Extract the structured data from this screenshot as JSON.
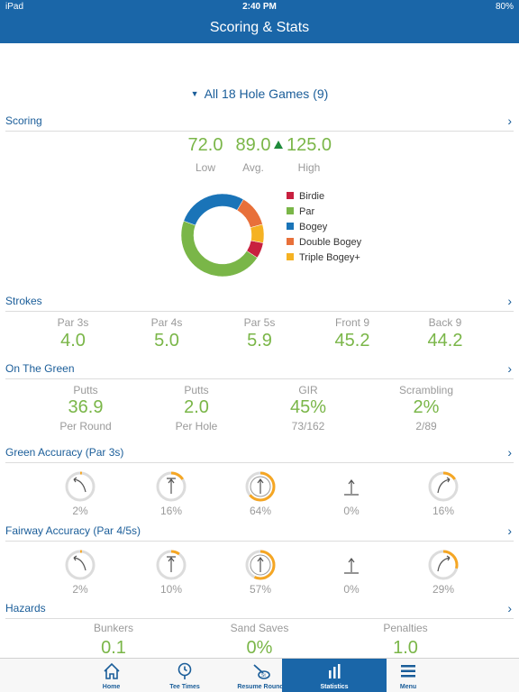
{
  "status": {
    "device": "iPad",
    "time": "2:40 PM",
    "battery": "80%"
  },
  "header": {
    "title": "Scoring & Stats"
  },
  "filter": {
    "label": "All 18 Hole Games (9)"
  },
  "scoring": {
    "heading": "Scoring",
    "low": "72.0",
    "low_label": "Low",
    "avg": "89.0",
    "avg_label": "Avg.",
    "high": "125.0",
    "high_label": "High",
    "legend": [
      {
        "label": "Birdie",
        "color": "#c8203f"
      },
      {
        "label": "Par",
        "color": "#7ab648"
      },
      {
        "label": "Bogey",
        "color": "#1a74b8"
      },
      {
        "label": "Double Bogey",
        "color": "#e8703a"
      },
      {
        "label": "Triple Bogey+",
        "color": "#f5b223"
      }
    ]
  },
  "chart_data": {
    "type": "pie",
    "categories": [
      "Birdie",
      "Par",
      "Bogey",
      "Double Bogey",
      "Triple Bogey+"
    ],
    "values": [
      6,
      45,
      27,
      12,
      7
    ],
    "colors": [
      "#c8203f",
      "#7ab648",
      "#1a74b8",
      "#e8703a",
      "#f5b223"
    ],
    "donut": true
  },
  "strokes": {
    "heading": "Strokes",
    "items": [
      {
        "label": "Par 3s",
        "value": "4.0"
      },
      {
        "label": "Par 4s",
        "value": "5.0"
      },
      {
        "label": "Par 5s",
        "value": "5.9"
      },
      {
        "label": "Front 9",
        "value": "45.2"
      },
      {
        "label": "Back 9",
        "value": "44.2"
      }
    ]
  },
  "green": {
    "heading": "On The Green",
    "items": [
      {
        "label": "Putts",
        "value": "36.9",
        "sub": "Per Round"
      },
      {
        "label": "Putts",
        "value": "2.0",
        "sub": "Per Hole"
      },
      {
        "label": "GIR",
        "value": "45%",
        "sub": "73/162"
      },
      {
        "label": "Scrambling",
        "value": "2%",
        "sub": "2/89"
      }
    ]
  },
  "green_accuracy": {
    "heading": "Green Accuracy (Par 3s)",
    "items": [
      {
        "pct": "2%",
        "fraction": 0.02,
        "icon": "arrow-left-icon"
      },
      {
        "pct": "16%",
        "fraction": 0.16,
        "icon": "arrow-up-icon"
      },
      {
        "pct": "64%",
        "fraction": 0.64,
        "icon": "target-hit-icon"
      },
      {
        "pct": "0%",
        "fraction": 0.0,
        "icon": "arrow-short-icon"
      },
      {
        "pct": "16%",
        "fraction": 0.16,
        "icon": "arrow-right-icon"
      }
    ]
  },
  "fairway_accuracy": {
    "heading": "Fairway Accuracy (Par 4/5s)",
    "items": [
      {
        "pct": "2%",
        "fraction": 0.02,
        "icon": "arrow-left-icon"
      },
      {
        "pct": "10%",
        "fraction": 0.1,
        "icon": "arrow-up-icon"
      },
      {
        "pct": "57%",
        "fraction": 0.57,
        "icon": "target-hit-icon"
      },
      {
        "pct": "0%",
        "fraction": 0.0,
        "icon": "arrow-short-icon"
      },
      {
        "pct": "29%",
        "fraction": 0.29,
        "icon": "arrow-right-icon"
      }
    ]
  },
  "hazards": {
    "heading": "Hazards",
    "items": [
      {
        "label": "Bunkers",
        "value": "0.1"
      },
      {
        "label": "Sand Saves",
        "value": "0%"
      },
      {
        "label": "Penalties",
        "value": "1.0"
      }
    ]
  },
  "tabs": [
    {
      "label": "Home",
      "icon": "home-icon"
    },
    {
      "label": "Tee Times",
      "icon": "clock-pin-icon"
    },
    {
      "label": "Resume Round",
      "icon": "golf-club-icon"
    },
    {
      "label": "Statistics",
      "icon": "bar-chart-icon",
      "active": true
    },
    {
      "label": "Menu",
      "icon": "menu-icon"
    }
  ],
  "colors": {
    "brand": "#1a66a8",
    "value_green": "#7ab648",
    "gauge_orange": "#f5a623",
    "gauge_track": "#dcdcdc"
  }
}
